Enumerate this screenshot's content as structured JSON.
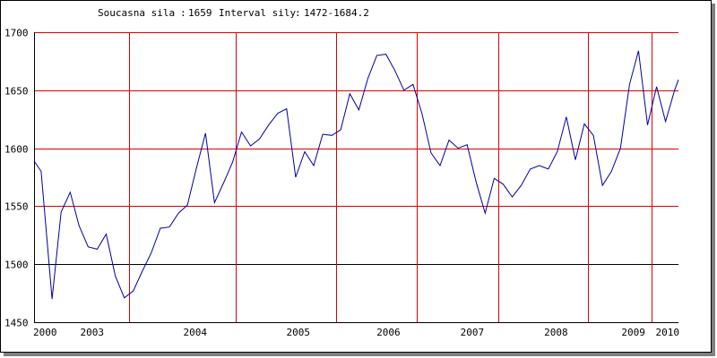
{
  "header": {
    "current_label": "Soucasna sila",
    "current_value": "1659",
    "interval_label": "Interval sily",
    "interval_value": "1472-1684.2"
  },
  "colors": {
    "line": "#0000a0",
    "grid": "#e00000",
    "baseline": "#000000"
  },
  "chart_data": {
    "type": "line",
    "title": "",
    "xlabel": "",
    "ylabel": "",
    "ylim": [
      1450,
      1700
    ],
    "xlim": [
      2000,
      2010
    ],
    "y_ticks": [
      "1450",
      "1500",
      "1550",
      "1600",
      "1650",
      "1700"
    ],
    "x_ticks": [
      {
        "label": "2000",
        "x": 2000
      },
      {
        "label": "2003",
        "x": 2000.9
      },
      {
        "label": "2004",
        "x": 2002.5
      },
      {
        "label": "2005",
        "x": 2004.1
      },
      {
        "label": "2006",
        "x": 2005.5
      },
      {
        "label": "2007",
        "x": 2006.8
      },
      {
        "label": "2008",
        "x": 2008.1
      },
      {
        "label": "2009",
        "x": 2009.3
      },
      {
        "label": "2010",
        "x": 2010
      }
    ],
    "vertical_gridlines": [
      2001.47,
      2003.13,
      2004.69,
      2005.94,
      2007.2,
      2008.6,
      2009.58
    ],
    "series": [
      {
        "x": [
          2000,
          2000.11,
          2000.28,
          2000.42,
          2000.56,
          2000.7,
          2000.84,
          2000.98,
          2001.12,
          2001.26,
          2001.4,
          2001.54,
          2001.68,
          2001.82,
          2001.96,
          2002.1,
          2002.24,
          2002.38,
          2002.52,
          2002.66,
          2002.8,
          2002.94,
          2003.08,
          2003.22,
          2003.36,
          2003.5,
          2003.64,
          2003.78,
          2003.92,
          2004.06,
          2004.2,
          2004.34,
          2004.48,
          2004.62,
          2004.76,
          2004.9,
          2005.04,
          2005.18,
          2005.32,
          2005.46,
          2005.6,
          2005.74,
          2005.88,
          2006.02,
          2006.16,
          2006.3,
          2006.44,
          2006.58,
          2006.72,
          2006.86,
          2007,
          2007.14,
          2007.28,
          2007.42,
          2007.56,
          2007.7,
          2007.84,
          2007.98,
          2008.12,
          2008.26,
          2008.4,
          2008.54,
          2008.68,
          2008.82,
          2008.96,
          2009.1,
          2009.24,
          2009.38,
          2009.52,
          2009.66,
          2009.8,
          2009.94,
          2010
        ],
        "y": [
          1589,
          1580,
          1470,
          1545,
          1562,
          1533,
          1515,
          1513,
          1526,
          1490,
          1471,
          1477,
          1494,
          1510,
          1531,
          1532,
          1544,
          1551,
          1583,
          1613,
          1553,
          1570,
          1588,
          1614,
          1602,
          1608,
          1620,
          1630,
          1634,
          1575,
          1597,
          1585,
          1612,
          1611,
          1616,
          1647,
          1633,
          1660,
          1680,
          1681,
          1667,
          1650,
          1655,
          1630,
          1596,
          1585,
          1607,
          1600,
          1603,
          1571,
          1544,
          1574,
          1569,
          1558,
          1568,
          1582,
          1585,
          1582,
          1597,
          1627,
          1590,
          1621,
          1611,
          1568,
          1580,
          1600,
          1655,
          1684,
          1620,
          1653,
          1623,
          1650,
          1659
        ]
      }
    ],
    "grid": true
  }
}
